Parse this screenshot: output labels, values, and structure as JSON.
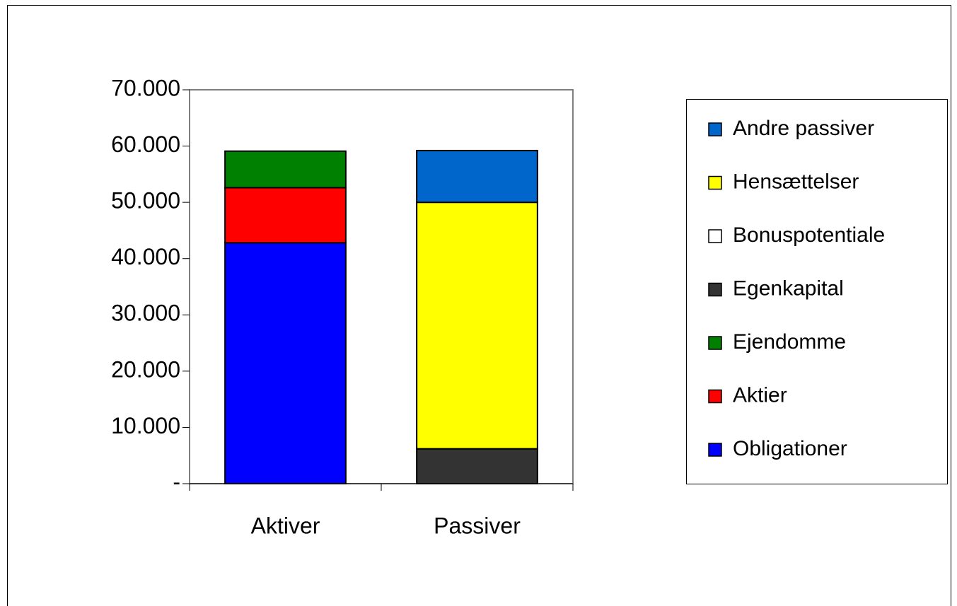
{
  "chart_data": {
    "type": "stacked_bar",
    "categories": [
      "Aktiver",
      "Passiver"
    ],
    "series": [
      {
        "name": "Obligationer",
        "color": "#0000ff",
        "values": [
          42800,
          0
        ]
      },
      {
        "name": "Aktier",
        "color": "#ff0000",
        "values": [
          9800,
          0
        ]
      },
      {
        "name": "Ejendomme",
        "color": "#008000",
        "values": [
          6500,
          0
        ]
      },
      {
        "name": "Egenkapital",
        "color": "#333333",
        "values": [
          0,
          6200
        ]
      },
      {
        "name": "Bonuspotentiale",
        "color": "#ffffff",
        "values": [
          0,
          0
        ]
      },
      {
        "name": "Hensættelser",
        "color": "#ffff00",
        "values": [
          0,
          43800
        ]
      },
      {
        "name": "Andre passiver",
        "color": "#0066cc",
        "values": [
          0,
          9200
        ]
      }
    ],
    "ylim": [
      0,
      70000
    ],
    "yticks": [
      {
        "value": 0,
        "label": "-"
      },
      {
        "value": 10000,
        "label": "10.000"
      },
      {
        "value": 20000,
        "label": "20.000"
      },
      {
        "value": 30000,
        "label": "30.000"
      },
      {
        "value": 40000,
        "label": "40.000"
      },
      {
        "value": 50000,
        "label": "50.000"
      },
      {
        "value": 60000,
        "label": "60.000"
      },
      {
        "value": 70000,
        "label": "70.000"
      }
    ],
    "grid": false,
    "legend": "right"
  }
}
